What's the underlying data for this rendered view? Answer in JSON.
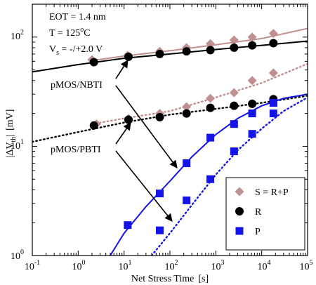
{
  "chart_data": {
    "type": "scatter",
    "xlabel": "Net Stress Time",
    "xunit": "[s]",
    "ylabel": "|ΔV",
    "ylabel_sub": "th",
    "ylabel_tail": "|",
    "yunit": "[mV]",
    "x_scale": "log",
    "y_scale": "log",
    "xlim": [
      0.1,
      100000
    ],
    "ylim": [
      1,
      200
    ],
    "grid": false,
    "legend_position": "bottom-right",
    "conditions": {
      "eot_label": "EOT = 1.4 nm",
      "temp_prefix": "T  = 125",
      "temp_sup": "o",
      "temp_suffix": "C",
      "vs_prefix": "V",
      "vs_sub": "s",
      "vs_suffix": " = -/+2.0 V"
    },
    "annotations": [
      {
        "text": "pMOS/NBTI"
      },
      {
        "text": "pMOS/PBTI"
      }
    ],
    "x_ticks": [
      {
        "base": "10",
        "exp": "-1"
      },
      {
        "base": "10",
        "exp": "0"
      },
      {
        "base": "10",
        "exp": "1"
      },
      {
        "base": "10",
        "exp": "2"
      },
      {
        "base": "10",
        "exp": "3"
      },
      {
        "base": "10",
        "exp": "4"
      },
      {
        "base": "10",
        "exp": "5"
      }
    ],
    "y_ticks": [
      {
        "base": "10",
        "exp": "0"
      },
      {
        "base": "10",
        "exp": "1"
      },
      {
        "base": "10",
        "exp": "2"
      }
    ],
    "legend": [
      {
        "label": "S = R+P",
        "marker": "diamond",
        "color": "#c09090"
      },
      {
        "label": "R",
        "marker": "circle",
        "color": "#000000"
      },
      {
        "label": "P",
        "marker": "square",
        "color": "#1414e6"
      }
    ],
    "series": [
      {
        "group": "NBTI",
        "label": "S = R+P",
        "marker": "diamond",
        "color": "#c09090",
        "x": [
          2,
          12,
          60,
          230,
          760,
          2500,
          6200,
          18000
        ],
        "y": [
          62,
          68,
          74,
          80,
          87,
          94,
          100,
          108
        ]
      },
      {
        "group": "NBTI",
        "label": "R",
        "marker": "circle",
        "color": "#000000",
        "x": [
          2.2,
          12.5,
          60,
          230,
          760,
          2500,
          6200,
          18000
        ],
        "y": [
          59,
          66,
          70,
          74,
          76,
          80,
          84,
          88
        ]
      },
      {
        "group": "PBTI",
        "label": "S = R+P",
        "marker": "diamond",
        "color": "#c09090",
        "x": [
          2.5,
          12.5,
          60,
          230,
          760,
          2500,
          6200,
          18000
        ],
        "y": [
          16,
          18,
          20,
          23,
          27.5,
          31,
          40,
          47
        ]
      },
      {
        "group": "PBTI",
        "label": "R",
        "marker": "circle",
        "color": "#000000",
        "x": [
          2.2,
          12.5,
          60,
          230,
          760,
          2500,
          6200,
          18000
        ],
        "y": [
          15.5,
          17.5,
          18.5,
          20,
          22.5,
          23.5,
          24.5,
          27
        ]
      },
      {
        "group": "NBTI",
        "label": "P",
        "marker": "square",
        "color": "#1414e6",
        "x": [
          12,
          60,
          230,
          760,
          2500,
          6200,
          18000
        ],
        "y": [
          1.9,
          3.7,
          7.0,
          12.0,
          16,
          20,
          25
        ]
      },
      {
        "group": "PBTI",
        "label": "P",
        "marker": "square",
        "color": "#1414e6",
        "x": [
          60,
          230,
          760,
          2500,
          6200,
          18000
        ],
        "y": [
          1.7,
          3.2,
          5.0,
          9.0,
          13,
          20
        ]
      }
    ],
    "fit_lines": [
      {
        "group": "NBTI",
        "of": "S",
        "style": "solid",
        "color": "#c09090",
        "x": [
          2,
          10,
          100,
          1000,
          10000,
          100000
        ],
        "y": [
          61,
          67,
          75,
          85,
          97,
          120
        ]
      },
      {
        "group": "NBTI",
        "of": "R",
        "style": "solid",
        "color": "#000000",
        "x": [
          0.1,
          1,
          10,
          100,
          1000,
          10000,
          100000
        ],
        "y": [
          48,
          56,
          64,
          70,
          77,
          84,
          92
        ]
      },
      {
        "group": "PBTI",
        "of": "S",
        "style": "dotted",
        "color": "#c09090",
        "x": [
          2,
          10,
          100,
          1000,
          10000,
          100000
        ],
        "y": [
          16,
          18,
          21,
          28,
          38,
          57
        ]
      },
      {
        "group": "PBTI",
        "of": "R",
        "style": "dotted",
        "color": "#000000",
        "x": [
          0.1,
          1,
          10,
          100,
          1000,
          10000,
          100000
        ],
        "y": [
          11,
          13.5,
          16.5,
          19.5,
          22,
          25,
          29
        ]
      },
      {
        "group": "NBTI",
        "of": "P",
        "style": "solid",
        "color": "#1414e6",
        "x": [
          5,
          10,
          30,
          100,
          300,
          1000,
          3000,
          10000,
          30000,
          100000
        ],
        "y": [
          1,
          1.6,
          2.8,
          4.8,
          8.0,
          12.8,
          18,
          23.5,
          27.5,
          30
        ]
      },
      {
        "group": "PBTI",
        "of": "P",
        "style": "dotted",
        "color": "#1414e6",
        "x": [
          40,
          100,
          300,
          1000,
          3000,
          10000,
          30000,
          100000
        ],
        "y": [
          1,
          1.6,
          2.9,
          5.5,
          9.2,
          14.5,
          21,
          28
        ]
      }
    ]
  }
}
